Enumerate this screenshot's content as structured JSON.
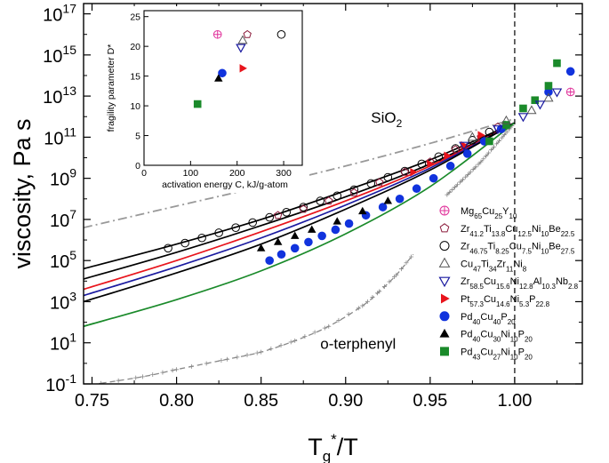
{
  "chart_data": {
    "type": "line",
    "xlabel": "T_g*/T",
    "ylabel": "viscosity,  Pa s",
    "xlim": [
      0.745,
      1.04
    ],
    "ylim_log10": [
      -1,
      17.5
    ],
    "x_ticks": [
      "0.75",
      "0.80",
      "0.85",
      "0.90",
      "0.95",
      "1.00"
    ],
    "y_tick_exponents": [
      -1,
      1,
      3,
      5,
      7,
      9,
      11,
      13,
      15,
      17
    ],
    "vertical_reference_line": 1.0,
    "annotations": [
      {
        "text": "SiO",
        "subscript": "2",
        "x": 0.915,
        "log_y": 11.7
      },
      {
        "text": "o-terphenyl",
        "x": 0.885,
        "log_y": 0.7
      }
    ],
    "legend": [
      {
        "parts": [
          [
            "Mg",
            ""
          ],
          [
            "65",
            "sub"
          ],
          [
            "Cu",
            ""
          ],
          [
            "25",
            "sub"
          ],
          [
            "Y",
            ""
          ],
          [
            "10",
            "sub"
          ]
        ],
        "marker": "circle-plus",
        "color": "#e0309a"
      },
      {
        "parts": [
          [
            "Zr",
            ""
          ],
          [
            "41.2",
            "sub"
          ],
          [
            "Ti",
            ""
          ],
          [
            "13.8",
            "sub"
          ],
          [
            "Cu",
            ""
          ],
          [
            "12.5",
            "sub"
          ],
          [
            "Ni",
            ""
          ],
          [
            "10",
            "sub"
          ],
          [
            "Be",
            ""
          ],
          [
            "22.5",
            "sub"
          ]
        ],
        "marker": "pentagon-open",
        "color": "#8b1a3a"
      },
      {
        "parts": [
          [
            "Zr",
            ""
          ],
          [
            "46.75",
            "sub"
          ],
          [
            "Ti",
            ""
          ],
          [
            "8.25",
            "sub"
          ],
          [
            "Cu",
            ""
          ],
          [
            "7.5",
            "sub"
          ],
          [
            "Ni",
            ""
          ],
          [
            "10",
            "sub"
          ],
          [
            "Be",
            ""
          ],
          [
            "27.5",
            "sub"
          ]
        ],
        "marker": "circle-open",
        "color": "#000000"
      },
      {
        "parts": [
          [
            "Cu",
            ""
          ],
          [
            "47",
            "sub"
          ],
          [
            "Ti",
            ""
          ],
          [
            "34",
            "sub"
          ],
          [
            "Zr",
            ""
          ],
          [
            "11",
            "sub"
          ],
          [
            "Ni",
            ""
          ],
          [
            "8",
            "sub"
          ]
        ],
        "marker": "triangle-up-open",
        "color": "#555555"
      },
      {
        "parts": [
          [
            "Zr",
            ""
          ],
          [
            "58.5",
            "sub"
          ],
          [
            "Cu",
            ""
          ],
          [
            "15.6",
            "sub"
          ],
          [
            "Ni",
            ""
          ],
          [
            "12.8",
            "sub"
          ],
          [
            "Al",
            ""
          ],
          [
            "10.3",
            "sub"
          ],
          [
            "Nb",
            ""
          ],
          [
            "2.8",
            "sub"
          ]
        ],
        "marker": "triangle-down-open",
        "color": "#1a1aa0"
      },
      {
        "parts": [
          [
            "Pt",
            ""
          ],
          [
            "57.3",
            "sub"
          ],
          [
            "Cu",
            ""
          ],
          [
            "14.6",
            "sub"
          ],
          [
            "Ni",
            ""
          ],
          [
            "5.3",
            "sub"
          ],
          [
            "P",
            ""
          ],
          [
            "22.8",
            "sub"
          ]
        ],
        "marker": "triangle-right-filled",
        "color": "#e8141c"
      },
      {
        "parts": [
          [
            "Pd",
            ""
          ],
          [
            "40",
            "sub"
          ],
          [
            "Cu",
            ""
          ],
          [
            "40",
            "sub"
          ],
          [
            "P",
            ""
          ],
          [
            "20",
            "sub"
          ]
        ],
        "marker": "circle-filled",
        "color": "#1133dd"
      },
      {
        "parts": [
          [
            "Pd",
            ""
          ],
          [
            "40",
            "sub"
          ],
          [
            "Cu",
            ""
          ],
          [
            "30",
            "sub"
          ],
          [
            "Ni",
            ""
          ],
          [
            "10",
            "sub"
          ],
          [
            "P",
            ""
          ],
          [
            "20",
            "sub"
          ]
        ],
        "marker": "triangle-up-filled",
        "color": "#000000"
      },
      {
        "parts": [
          [
            "Pd",
            ""
          ],
          [
            "43",
            "sub"
          ],
          [
            "Cu",
            ""
          ],
          [
            "27",
            "sub"
          ],
          [
            "Ni",
            ""
          ],
          [
            "10",
            "sub"
          ],
          [
            "P",
            ""
          ],
          [
            "20",
            "sub"
          ]
        ],
        "marker": "square-filled",
        "color": "#1a8a2a"
      }
    ],
    "series": [
      {
        "name": "SiO2",
        "kind": "line",
        "style": "dashdot",
        "color": "#999999",
        "x": [
          0.745,
          0.8,
          0.85,
          0.9,
          0.95,
          1.0
        ],
        "log_y": [
          6.6,
          7.65,
          8.6,
          9.6,
          10.7,
          11.9
        ]
      },
      {
        "name": "o-terphenyl",
        "kind": "line",
        "style": "dashed-plus",
        "color": "#888888",
        "x": [
          0.745,
          0.78,
          0.8,
          0.83,
          0.85,
          0.87,
          0.89,
          0.91,
          0.92,
          0.93,
          0.94
        ],
        "log_y": [
          -1.1,
          -0.65,
          -0.3,
          0.2,
          0.55,
          1.1,
          1.8,
          2.8,
          3.5,
          4.3,
          5.3
        ]
      },
      {
        "name": "o-terphenyl-near-Tg",
        "kind": "line",
        "style": "dashed-plus",
        "color": "#888888",
        "x": [
          0.96,
          0.98,
          1.0
        ],
        "log_y": [
          8.2,
          9.8,
          11.7
        ]
      },
      {
        "name": "fit-Zr46.75",
        "kind": "line",
        "color": "#000000",
        "x": [
          0.745,
          0.8,
          0.85,
          0.9,
          0.95,
          1.0
        ],
        "log_y": [
          4.6,
          5.8,
          7.0,
          8.4,
          9.9,
          11.7
        ]
      },
      {
        "name": "fit-Zr41.2",
        "kind": "line",
        "color": "#000000",
        "x": [
          0.745,
          0.8,
          0.85,
          0.9,
          0.95,
          1.0
        ],
        "log_y": [
          4.1,
          5.4,
          6.7,
          8.1,
          9.7,
          11.7
        ]
      },
      {
        "name": "fit-Pt",
        "kind": "line",
        "color": "#e8141c",
        "x": [
          0.745,
          0.8,
          0.85,
          0.9,
          0.95,
          1.0
        ],
        "log_y": [
          3.6,
          5.0,
          6.4,
          7.9,
          9.6,
          11.7
        ]
      },
      {
        "name": "fit-Zr58.5",
        "kind": "line",
        "color": "#1a1aa0",
        "x": [
          0.745,
          0.8,
          0.85,
          0.9,
          0.95,
          1.0
        ],
        "log_y": [
          3.3,
          4.7,
          6.1,
          7.7,
          9.5,
          11.7
        ]
      },
      {
        "name": "fit-Pd40Cu30",
        "kind": "line",
        "color": "#000000",
        "x": [
          0.745,
          0.8,
          0.85,
          0.9,
          0.95,
          1.0
        ],
        "log_y": [
          3.0,
          4.4,
          5.8,
          7.5,
          9.4,
          11.7
        ]
      },
      {
        "name": "fit-Pd43Cu27",
        "kind": "line",
        "color": "#1a8a2a",
        "x": [
          0.745,
          0.8,
          0.85,
          0.9,
          0.95,
          1.0
        ],
        "log_y": [
          1.8,
          3.1,
          4.5,
          6.3,
          8.6,
          11.7
        ]
      },
      {
        "name": "Zr46.75Ti8.25Cu7.5Ni10Be27.5 data",
        "kind": "scatter",
        "marker": "circle-open",
        "color": "#000000",
        "x": [
          0.795,
          0.805,
          0.815,
          0.825,
          0.835,
          0.845,
          0.855,
          0.865,
          0.875,
          0.885,
          0.895,
          0.905,
          0.915,
          0.925,
          0.935,
          0.945,
          0.955,
          0.965,
          0.975,
          0.985
        ],
        "log_y": [
          5.6,
          5.85,
          6.1,
          6.35,
          6.6,
          6.85,
          7.1,
          7.35,
          7.6,
          7.9,
          8.15,
          8.45,
          8.75,
          9.05,
          9.35,
          9.7,
          10.05,
          10.45,
          10.85,
          11.25
        ]
      },
      {
        "name": "Zr41.2Ti13.8Cu12.5Ni10Be22.5 data",
        "kind": "scatter",
        "marker": "pentagon-open",
        "color": "#8b1a3a",
        "x": [
          0.86,
          0.875,
          0.89,
          0.905,
          0.92,
          0.935,
          0.95,
          0.965,
          0.98,
          0.99
        ],
        "log_y": [
          7.2,
          7.5,
          7.9,
          8.3,
          8.8,
          9.3,
          9.8,
          10.4,
          11.0,
          11.5
        ]
      },
      {
        "name": "Pd40Cu40P20 data",
        "kind": "scatter",
        "marker": "circle-filled",
        "color": "#1133dd",
        "x": [
          0.855,
          0.862,
          0.87,
          0.878,
          0.886,
          0.894,
          0.902,
          0.912,
          0.922,
          0.932,
          0.942,
          0.952,
          0.962,
          0.972,
          0.982,
          0.992,
          1.02,
          1.033
        ],
        "log_y": [
          5.0,
          5.3,
          5.6,
          5.9,
          6.2,
          6.5,
          6.8,
          7.2,
          7.6,
          8.0,
          8.5,
          9.0,
          9.6,
          10.2,
          10.8,
          11.4,
          13.2,
          14.2
        ]
      },
      {
        "name": "Pd40Cu30Ni10P20 data",
        "kind": "scatter",
        "marker": "triangle-up-filled",
        "color": "#000000",
        "x": [
          0.85,
          0.86,
          0.87,
          0.88,
          0.895,
          0.91,
          0.925
        ],
        "log_y": [
          5.6,
          5.9,
          6.2,
          6.5,
          6.9,
          7.4,
          7.9
        ]
      },
      {
        "name": "Pt57.3Cu14.6Ni5.3P22.8 data",
        "kind": "scatter",
        "marker": "triangle-right-filled",
        "color": "#e8141c",
        "x": [
          0.94,
          0.95,
          0.96,
          0.97,
          0.98
        ],
        "log_y": [
          9.3,
          9.7,
          10.1,
          10.6,
          11.1
        ]
      },
      {
        "name": "Pd43Cu27Ni10P20 data",
        "kind": "scatter",
        "marker": "square-filled",
        "color": "#1a8a2a",
        "x": [
          0.985,
          0.995,
          1.005,
          1.012,
          1.02,
          1.025
        ],
        "log_y": [
          10.8,
          11.6,
          12.4,
          12.8,
          13.5,
          14.6
        ]
      },
      {
        "name": "Cu47Ti34Zr11Ni8 data",
        "kind": "scatter",
        "marker": "triangle-up-open",
        "color": "#555555",
        "x": [
          0.975,
          0.995,
          1.01,
          1.02
        ],
        "log_y": [
          11.0,
          11.8,
          12.3,
          12.9
        ]
      },
      {
        "name": "Zr58.5Cu15.6Ni12.8Al10.3Nb2.8 data",
        "kind": "scatter",
        "marker": "triangle-down-open",
        "color": "#1a1aa0",
        "x": [
          0.97,
          0.99,
          1.005,
          1.015,
          1.025
        ],
        "log_y": [
          10.6,
          11.4,
          12.0,
          12.6,
          13.2
        ]
      },
      {
        "name": "Mg65Cu25Y10 data",
        "kind": "scatter",
        "marker": "circle-plus",
        "color": "#e0309a",
        "x": [
          1.033
        ],
        "log_y": [
          13.2
        ]
      }
    ],
    "inset": {
      "type": "scatter",
      "xlabel": "activation energy C, kJ/g-atom",
      "ylabel": "fragility parameter D*",
      "xlim": [
        0,
        340
      ],
      "ylim": [
        0,
        26
      ],
      "x_ticks": [
        "0",
        "100",
        "200",
        "300"
      ],
      "y_ticks": [
        "0",
        "5",
        "10",
        "15",
        "20",
        "25"
      ],
      "points": [
        {
          "x": 158,
          "y": 22.0,
          "marker": "circle-plus",
          "color": "#e0309a"
        },
        {
          "x": 222,
          "y": 22.0,
          "marker": "pentagon-open",
          "color": "#8b1a3a"
        },
        {
          "x": 295,
          "y": 22.0,
          "marker": "circle-open",
          "color": "#000000"
        },
        {
          "x": 212,
          "y": 21.0,
          "marker": "triangle-up-open",
          "color": "#555555"
        },
        {
          "x": 208,
          "y": 19.8,
          "marker": "triangle-down-open",
          "color": "#1a1aa0"
        },
        {
          "x": 212,
          "y": 16.3,
          "marker": "triangle-right-filled",
          "color": "#e8141c"
        },
        {
          "x": 168,
          "y": 15.5,
          "marker": "circle-filled",
          "color": "#1133dd"
        },
        {
          "x": 160,
          "y": 14.6,
          "marker": "triangle-up-filled",
          "color": "#000000"
        },
        {
          "x": 115,
          "y": 10.3,
          "marker": "square-filled",
          "color": "#1a8a2a"
        }
      ]
    }
  }
}
